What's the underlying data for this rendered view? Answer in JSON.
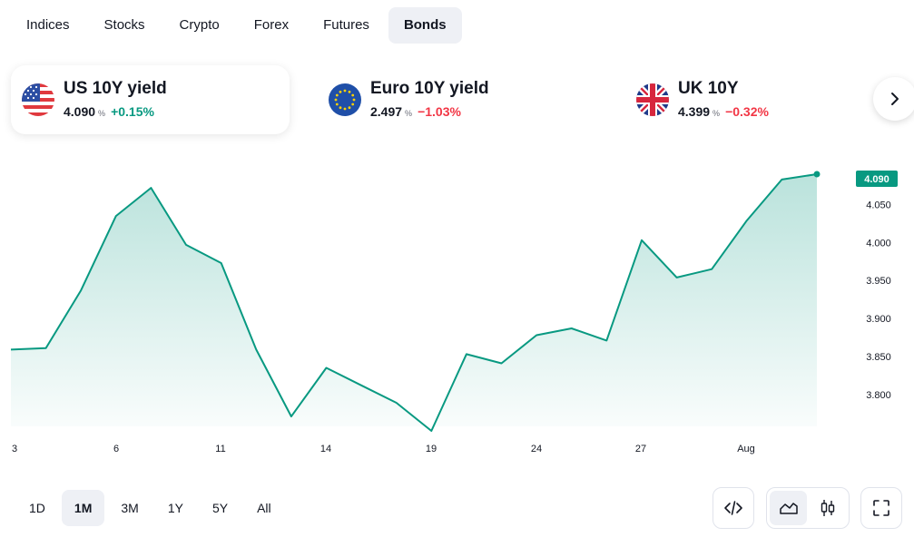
{
  "tabs": [
    {
      "label": "Indices",
      "active": false
    },
    {
      "label": "Stocks",
      "active": false
    },
    {
      "label": "Crypto",
      "active": false
    },
    {
      "label": "Forex",
      "active": false
    },
    {
      "label": "Futures",
      "active": false
    },
    {
      "label": "Bonds",
      "active": true
    }
  ],
  "symbols": [
    {
      "name": "US 10Y yield",
      "price": "4.090",
      "unit": "%",
      "change": "+0.15%",
      "direction": "up",
      "flag": "us-flag-icon",
      "active": true
    },
    {
      "name": "Euro 10Y yield",
      "price": "2.497",
      "unit": "%",
      "change": "−1.03%",
      "direction": "down",
      "flag": "eu-flag-icon",
      "active": false
    },
    {
      "name": "UK 10Y",
      "price": "4.399",
      "unit": "%",
      "change": "−0.32%",
      "direction": "down",
      "flag": "uk-flag-icon",
      "active": false
    }
  ],
  "chart_data": {
    "type": "area",
    "series": [
      {
        "values": [
          3.859,
          3.861,
          3.937,
          4.035,
          4.072,
          3.997,
          3.973,
          3.859,
          3.771,
          3.835,
          3.812,
          3.789,
          3.752,
          3.853,
          3.841,
          3.878,
          3.887,
          3.871,
          4.003,
          3.954,
          3.965,
          4.029,
          4.083,
          4.09
        ]
      }
    ],
    "x_ticks": [
      "3",
      "6",
      "11",
      "14",
      "19",
      "24",
      "27",
      "Aug"
    ],
    "y_ticks": [
      "4.050",
      "4.000",
      "3.950",
      "3.900",
      "3.850",
      "3.800"
    ],
    "last_value_label": "4.090",
    "ylim": [
      3.75,
      4.1
    ],
    "line_color": "#089981",
    "fill_color": "#089981",
    "grid": false,
    "legend": "none"
  },
  "ranges": [
    {
      "label": "1D",
      "active": false
    },
    {
      "label": "1M",
      "active": true
    },
    {
      "label": "3M",
      "active": false
    },
    {
      "label": "1Y",
      "active": false
    },
    {
      "label": "5Y",
      "active": false
    },
    {
      "label": "All",
      "active": false
    }
  ],
  "tools": {
    "embed": "code-icon",
    "area": "area-chart-icon",
    "candles": "candlestick-icon",
    "fullscreen": "fullscreen-icon"
  }
}
